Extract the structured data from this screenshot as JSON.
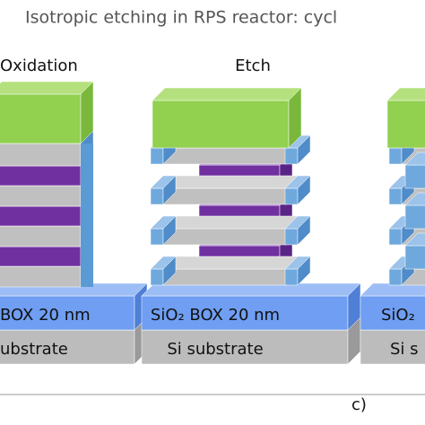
{
  "title": "Isotropic etching in RPS reactor: cycl",
  "panels": [
    {
      "label": "Oxidation",
      "box": "BOX 20 nm",
      "substrate": "ubstrate"
    },
    {
      "label": "Etch",
      "box": "SiO₂ BOX 20 nm",
      "substrate": "Si substrate"
    },
    {
      "box": "SiO₂",
      "substrate": "Si s"
    }
  ],
  "caption": "c)"
}
